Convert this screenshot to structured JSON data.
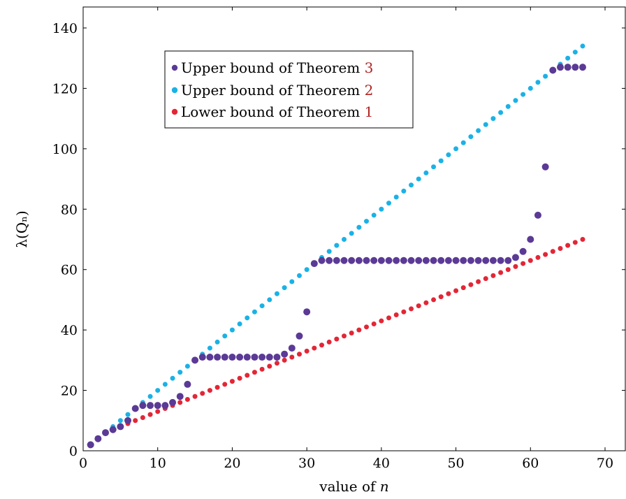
{
  "chart_data": {
    "type": "scatter",
    "xlabel_prefix": "value of",
    "xlabel_var": "n",
    "ylabel": "λ(Qₙ)",
    "xlim": [
      0,
      72
    ],
    "ylim": [
      0,
      147
    ],
    "xticks": [
      0,
      10,
      20,
      30,
      40,
      50,
      60,
      70
    ],
    "yticks": [
      0,
      20,
      40,
      60,
      80,
      100,
      120,
      140
    ],
    "grid": false,
    "legend_position": "top-left (inside)",
    "legend": [
      {
        "label": "Upper bound of Theorem",
        "ref": "3",
        "color": "#5b3a96"
      },
      {
        "label": "Upper bound of Theorem",
        "ref": "2",
        "color": "#1ab2e6"
      },
      {
        "label": "Lower bound of Theorem",
        "ref": "1",
        "color": "#e32636"
      }
    ],
    "series": [
      {
        "color": "#e32636",
        "x": [
          1,
          2,
          3,
          4,
          5,
          6,
          7,
          8,
          9,
          10,
          11,
          12,
          13,
          14,
          15,
          16,
          17,
          18,
          19,
          20,
          21,
          22,
          23,
          24,
          25,
          26,
          27,
          28,
          29,
          30,
          31,
          32,
          33,
          34,
          35,
          36,
          37,
          38,
          39,
          40,
          41,
          42,
          43,
          44,
          45,
          46,
          47,
          48,
          49,
          50,
          51,
          52,
          53,
          54,
          55,
          56,
          57,
          58,
          59,
          60,
          61,
          62,
          63,
          64,
          65,
          66,
          67
        ],
        "y": [
          2,
          4,
          6,
          7,
          8,
          9,
          10,
          11,
          12,
          13,
          14,
          15,
          16,
          17,
          18,
          19,
          20,
          21,
          22,
          23,
          24,
          25,
          26,
          27,
          28,
          29,
          30,
          31,
          32,
          33,
          34,
          35,
          36,
          37,
          38,
          39,
          40,
          41,
          42,
          43,
          44,
          45,
          46,
          47,
          48,
          49,
          50,
          51,
          52,
          53,
          54,
          55,
          56,
          57,
          58,
          59,
          60,
          61,
          62,
          63,
          64,
          65,
          66,
          67,
          68,
          69,
          70
        ]
      },
      {
        "color": "#1ab2e6",
        "x": [
          1,
          2,
          3,
          4,
          5,
          6,
          7,
          8,
          9,
          10,
          11,
          12,
          13,
          14,
          15,
          16,
          17,
          18,
          19,
          20,
          21,
          22,
          23,
          24,
          25,
          26,
          27,
          28,
          29,
          30,
          31,
          32,
          33,
          34,
          35,
          36,
          37,
          38,
          39,
          40,
          41,
          42,
          43,
          44,
          45,
          46,
          47,
          48,
          49,
          50,
          51,
          52,
          53,
          54,
          55,
          56,
          57,
          58,
          59,
          60,
          61,
          62,
          63,
          64,
          65,
          66,
          67
        ],
        "y": [
          2,
          4,
          6,
          8,
          10,
          12,
          14,
          16,
          18,
          20,
          22,
          24,
          26,
          28,
          30,
          32,
          34,
          36,
          38,
          40,
          42,
          44,
          46,
          48,
          50,
          52,
          54,
          56,
          58,
          60,
          62,
          64,
          66,
          68,
          70,
          72,
          74,
          76,
          78,
          80,
          82,
          84,
          86,
          88,
          90,
          92,
          94,
          96,
          98,
          100,
          102,
          104,
          106,
          108,
          110,
          112,
          114,
          116,
          118,
          120,
          122,
          124,
          126,
          128,
          130,
          132,
          134
        ]
      },
      {
        "color": "#5b3a96",
        "x": [
          1,
          2,
          3,
          4,
          5,
          6,
          7,
          8,
          9,
          10,
          11,
          12,
          13,
          14,
          15,
          16,
          17,
          18,
          19,
          20,
          21,
          22,
          23,
          24,
          25,
          26,
          27,
          28,
          29,
          30,
          31,
          32,
          33,
          34,
          35,
          36,
          37,
          38,
          39,
          40,
          41,
          42,
          43,
          44,
          45,
          46,
          47,
          48,
          49,
          50,
          51,
          52,
          53,
          54,
          55,
          56,
          57,
          58,
          59,
          60,
          61,
          62,
          63,
          64,
          65,
          66,
          67
        ],
        "y": [
          2,
          4,
          6,
          7,
          8,
          10,
          14,
          15,
          15,
          15,
          15,
          16,
          18,
          22,
          30,
          31,
          31,
          31,
          31,
          31,
          31,
          31,
          31,
          31,
          31,
          31,
          32,
          34,
          38,
          46,
          62,
          63,
          63,
          63,
          63,
          63,
          63,
          63,
          63,
          63,
          63,
          63,
          63,
          63,
          63,
          63,
          63,
          63,
          63,
          63,
          63,
          63,
          63,
          63,
          63,
          63,
          63,
          64,
          66,
          70,
          78,
          94,
          126,
          127,
          127,
          127,
          127
        ]
      }
    ]
  }
}
